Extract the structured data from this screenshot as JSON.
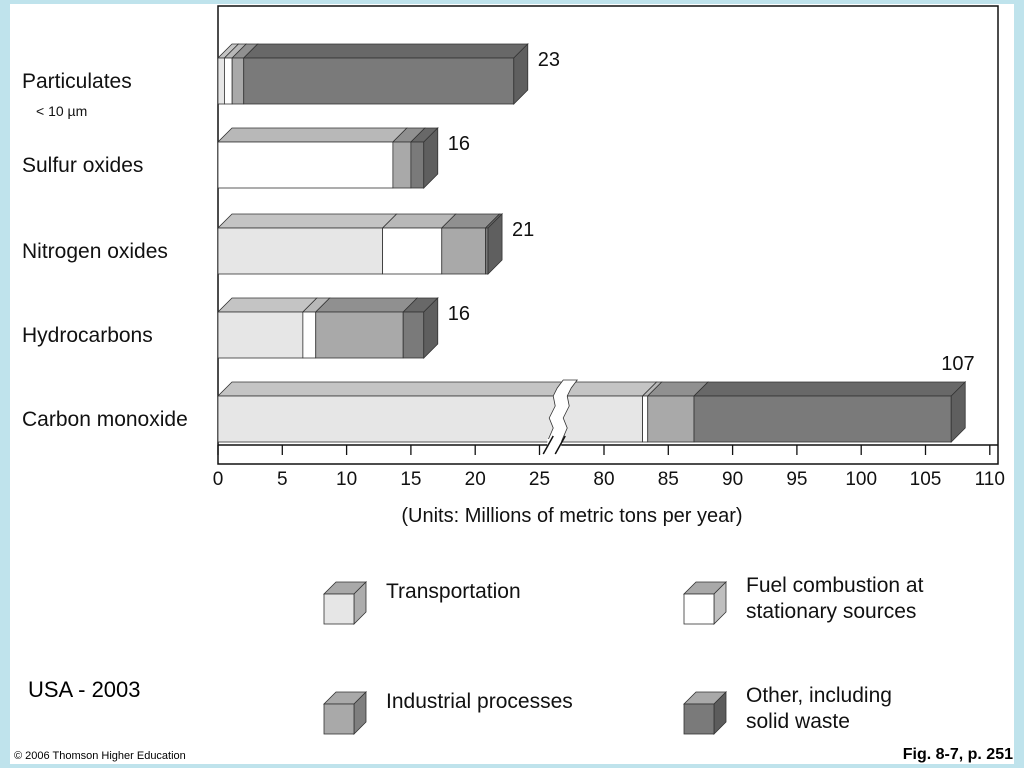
{
  "chart_data": {
    "type": "bar",
    "orientation": "horizontal",
    "stacked": true,
    "categories": [
      "Particulates",
      "Sulfur oxides",
      "Nitrogen oxides",
      "Hydrocarbons",
      "Carbon monoxide"
    ],
    "category_sublabels": [
      "< 10 µm",
      "",
      "",
      "",
      ""
    ],
    "series": [
      {
        "name": "Transportation",
        "color": "#e6e6e6",
        "values": [
          0.5,
          0,
          12.8,
          6.6,
          83.0
        ]
      },
      {
        "name": "Fuel combustion at stationary sources",
        "color": "#ffffff",
        "values": [
          0.6,
          13.6,
          4.6,
          1.0,
          0.4
        ]
      },
      {
        "name": "Industrial processes",
        "color": "#a9a9a9",
        "values": [
          0.9,
          1.4,
          3.4,
          6.8,
          3.6
        ]
      },
      {
        "name": "Other, including solid waste",
        "color": "#7a7a7a",
        "values": [
          21.0,
          1.0,
          0.2,
          1.6,
          20.0
        ]
      }
    ],
    "totals": [
      "23",
      "16",
      "21",
      "16",
      "107"
    ],
    "xlabel": "(Units: Millions of metric tons per year)",
    "xlim": [
      0,
      110
    ],
    "axis_break": [
      27,
      78
    ],
    "xticks": [
      "0",
      "5",
      "10",
      "15",
      "20",
      "25",
      "80",
      "85",
      "90",
      "95",
      "100",
      "105",
      "110"
    ],
    "grid": false,
    "legend_position": "bottom"
  },
  "notes": {
    "region": "USA - 2003",
    "copyright": "© 2006 Thomson Higher Education",
    "figure_ref": "Fig. 8-7, p. 251"
  }
}
